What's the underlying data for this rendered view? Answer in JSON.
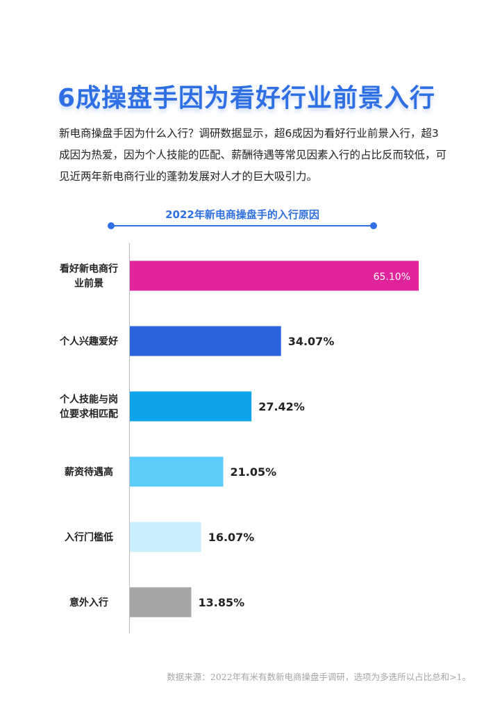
{
  "header": {
    "title": "6成操盘手因为看好行业前景入行",
    "intro": "新电商操盘手因为什么入行？调研数据显示，超6成因为看好行业前景入行，超3成因为热爱，因为个人技能的匹配、薪酬待遇等常见因素入行的占比反而较低，可见近两年新电商行业的蓬勃发展对人才的巨大吸引力。"
  },
  "colors": {
    "accent": "#2f6fe4"
  },
  "chart_data": {
    "type": "bar",
    "orientation": "horizontal",
    "title": "2022年新电商操盘手的入行原因",
    "categories": [
      "看好新电商行业前景",
      "个人兴趣爱好",
      "个人技能与岗位要求相匹配",
      "薪资待遇高",
      "入行门槛低",
      "意外入行"
    ],
    "category_lines": [
      [
        "看好新电商行",
        "业前景"
      ],
      [
        "个人兴趣爱好"
      ],
      [
        "个人技能与岗",
        "位要求相匹配"
      ],
      [
        "薪资待遇高"
      ],
      [
        "入行门槛低"
      ],
      [
        "意外入行"
      ]
    ],
    "values": [
      65.1,
      34.07,
      27.42,
      21.05,
      16.07,
      13.85
    ],
    "labels": [
      "65.10%",
      "34.07%",
      "27.42%",
      "21.05%",
      "16.07%",
      "13.85%"
    ],
    "colors": [
      "#e0249b",
      "#2a63de",
      "#0fa4ea",
      "#5ccdf8",
      "#c9efff",
      "#a6a6a6"
    ],
    "label_inside": [
      true,
      false,
      false,
      false,
      false,
      false
    ],
    "grid": false
  },
  "footer": {
    "source": "数据来源：2022年有米有数新电商操盘手调研，选项为多选所以占比总和>1。"
  }
}
